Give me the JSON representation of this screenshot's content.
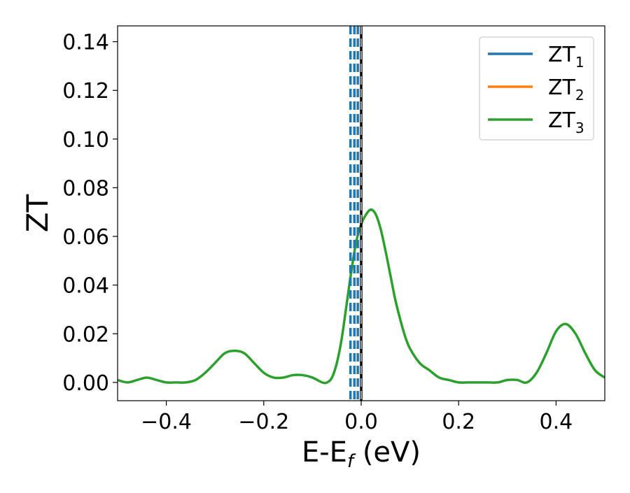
{
  "chart_data": {
    "type": "line",
    "xlabel": {
      "main": "E-E",
      "sub": "f",
      "tail": " (eV)"
    },
    "ylabel": "ZT",
    "xlim": [
      -0.5,
      0.5
    ],
    "ylim": [
      -0.0075,
      0.1465
    ],
    "x_ticks": [
      -0.4,
      -0.2,
      0.0,
      0.2,
      0.4
    ],
    "x_tick_labels": [
      "−0.4",
      "−0.2",
      "0.0",
      "0.2",
      "0.4"
    ],
    "y_ticks": [
      0.0,
      0.02,
      0.04,
      0.06,
      0.08,
      0.1,
      0.12,
      0.14
    ],
    "y_tick_labels": [
      "0.00",
      "0.02",
      "0.04",
      "0.06",
      "0.08",
      "0.10",
      "0.12",
      "0.14"
    ],
    "grid": false,
    "legend_position": "top-right",
    "legend": [
      {
        "base": "ZT",
        "sub": "1",
        "color": "#1f77b4"
      },
      {
        "base": "ZT",
        "sub": "2",
        "color": "#ff7f0e"
      },
      {
        "base": "ZT",
        "sub": "3",
        "color": "#2ca02c"
      }
    ],
    "series_note": "ZT1, ZT2 and ZT3 overlap; ZT3 drawn on top",
    "series": [
      {
        "legend_index": 2,
        "x": [
          -0.5,
          -0.48,
          -0.46,
          -0.44,
          -0.42,
          -0.4,
          -0.38,
          -0.36,
          -0.34,
          -0.32,
          -0.3,
          -0.28,
          -0.26,
          -0.24,
          -0.22,
          -0.2,
          -0.18,
          -0.16,
          -0.14,
          -0.12,
          -0.1,
          -0.08,
          -0.07,
          -0.06,
          -0.05,
          -0.04,
          -0.03,
          -0.02,
          -0.01,
          0.0,
          0.01,
          0.02,
          0.03,
          0.04,
          0.05,
          0.06,
          0.07,
          0.08,
          0.09,
          0.1,
          0.12,
          0.14,
          0.16,
          0.18,
          0.2,
          0.22,
          0.24,
          0.26,
          0.28,
          0.3,
          0.32,
          0.34,
          0.36,
          0.38,
          0.4,
          0.42,
          0.44,
          0.46,
          0.48,
          0.5
        ],
        "y": [
          0.001,
          0.0,
          0.001,
          0.002,
          0.001,
          0.0,
          0.0,
          0.0,
          0.001,
          0.004,
          0.008,
          0.012,
          0.013,
          0.012,
          0.008,
          0.004,
          0.002,
          0.002,
          0.003,
          0.003,
          0.002,
          0.0,
          0.0,
          0.002,
          0.008,
          0.018,
          0.032,
          0.046,
          0.058,
          0.065,
          0.069,
          0.071,
          0.069,
          0.063,
          0.054,
          0.044,
          0.034,
          0.026,
          0.019,
          0.014,
          0.008,
          0.005,
          0.002,
          0.001,
          0.0,
          0.0,
          0.0,
          0.0,
          0.0,
          0.001,
          0.001,
          0.0,
          0.004,
          0.012,
          0.021,
          0.024,
          0.02,
          0.012,
          0.005,
          0.002
        ]
      }
    ],
    "vertical_lines": [
      {
        "x": -0.022,
        "color": "#1f77b4",
        "style": "dashed"
      },
      {
        "x": -0.014,
        "color": "#1f77b4",
        "style": "dashed"
      },
      {
        "x": -0.007,
        "color": "#1f77b4",
        "style": "dashed"
      },
      {
        "x": 0.0,
        "color": "#000000",
        "style": "dashed"
      }
    ]
  }
}
